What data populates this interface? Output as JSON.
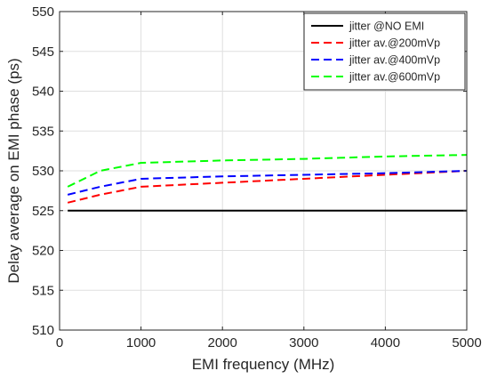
{
  "chart_data": {
    "type": "line",
    "title": "",
    "xlabel": "EMI frequency (MHz)",
    "ylabel": "Delay average on EMI phase (ps)",
    "xlim": [
      0,
      5000
    ],
    "ylim": [
      510,
      550
    ],
    "xticks": [
      0,
      1000,
      2000,
      3000,
      4000,
      5000
    ],
    "yticks": [
      510,
      515,
      520,
      525,
      530,
      535,
      540,
      545,
      550
    ],
    "xtick_labels": [
      "0",
      "1000",
      "2000",
      "3000",
      "4000",
      "5000"
    ],
    "ytick_labels": [
      "510",
      "515",
      "520",
      "525",
      "530",
      "535",
      "540",
      "545",
      "550"
    ],
    "grid": true,
    "legend_position": "top-right",
    "series": [
      {
        "name": "jitter @NO EMI",
        "color": "#000000",
        "dash": "solid",
        "x": [
          100,
          500,
          1000,
          2000,
          3000,
          4000,
          5000
        ],
        "y": [
          525,
          525,
          525,
          525,
          525,
          525,
          525
        ]
      },
      {
        "name": "jitter av.@200mVp",
        "color": "#ff0000",
        "dash": "dashed",
        "x": [
          100,
          500,
          1000,
          2000,
          3000,
          4000,
          5000
        ],
        "y": [
          526,
          527,
          528,
          528.5,
          529,
          529.5,
          530
        ]
      },
      {
        "name": "jitter av.@400mVp",
        "color": "#0000ff",
        "dash": "dashed",
        "x": [
          100,
          500,
          1000,
          2000,
          3000,
          4000,
          5000
        ],
        "y": [
          527,
          528,
          529,
          529.3,
          529.5,
          529.7,
          530
        ]
      },
      {
        "name": "jitter av.@600mVp",
        "color": "#00ff00",
        "dash": "dashed",
        "x": [
          100,
          500,
          1000,
          2000,
          3000,
          4000,
          5000
        ],
        "y": [
          528,
          530,
          531,
          531.3,
          531.5,
          531.8,
          532
        ]
      }
    ]
  }
}
